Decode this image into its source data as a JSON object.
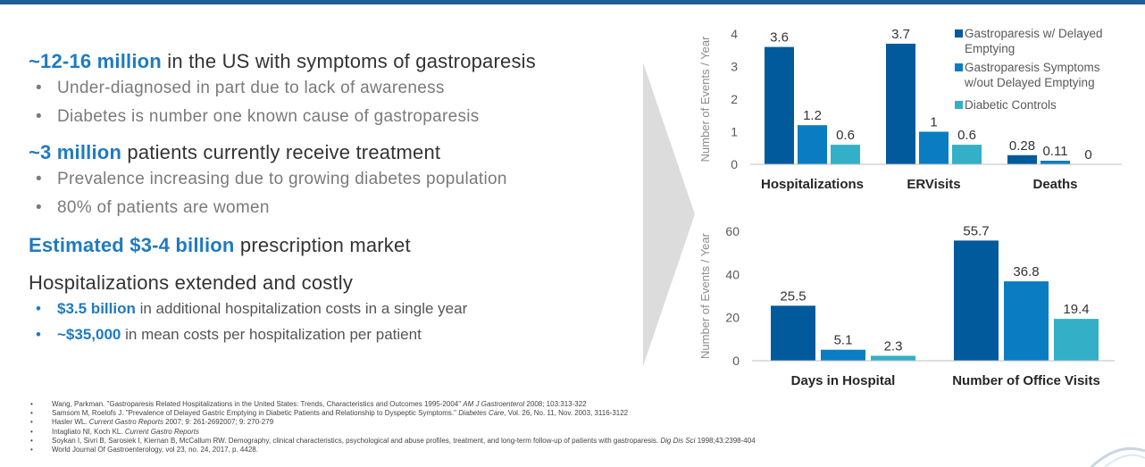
{
  "left": {
    "heading1": {
      "highlight": "~12-16 million",
      "rest": " in the US with symptoms of gastroparesis"
    },
    "bullets1": [
      "Under-diagnosed in part due to lack of awareness",
      "Diabetes is number one known cause of gastroparesis"
    ],
    "heading2": {
      "highlight": "~3 million",
      "rest": " patients currently receive treatment"
    },
    "bullets2": [
      "Prevalence increasing due to growing diabetes population",
      "80% of patients are women"
    ],
    "heading3": {
      "highlight": "Estimated $3-4 billion",
      "rest": " prescription market"
    },
    "heading4": "Hospitalizations extended and costly",
    "bullets3": [
      {
        "highlight": "$3.5 billion",
        "rest": " in additional hospitalization costs in a single year"
      },
      {
        "highlight": "~$35,000",
        "rest": " in mean costs per hospitalization per patient"
      }
    ],
    "bullet_symbol": "•"
  },
  "references": [
    {
      "text": "Wang, Parkman. \"Gastroparesis Related Hospitalizations in the United States: Trends, Characteristics and Outcomes 1995-2004\" ",
      "italic": "AM J Gastroenterol",
      "tail": " 2008; 103:313-322"
    },
    {
      "text": "Samsom M, Roelofs J. \"Prevalence of Delayed Gastric Emptying in Diabetic Patients and Relationship to Dyspeptic Symptoms.\" ",
      "italic": "Diabetes Care",
      "tail": ", Vol. 26, No. 11, Nov. 2003, 3116-3122"
    },
    {
      "text": "Hasler WL. ",
      "italic": "Current Gastro Reports",
      "tail": " 2007; 9: 261-2692007; 9: 270-279"
    },
    {
      "text": "Intagliato NI, Koch KL. ",
      "italic": "Current Gastro Reports",
      "tail": ""
    },
    {
      "text": "Soykan I, Sivri B, Sarosiek I, Kiernan B, McCallum RW. Demography, clinical characteristics, psychological and abuse profiles, treatment, and long-term follow-up of patients with gastroparesis. ",
      "italic": "Dig Dis Sci",
      "tail": " 1998;43:2398-404"
    },
    {
      "text": "World Journal Of Gastroenterology, vol 23, no. 24, 2017, p. 4428.",
      "italic": "",
      "tail": ""
    }
  ],
  "colors": {
    "series1": "#005a9c",
    "series2": "#0a7dc2",
    "series3": "#33b0c8",
    "accent": "#1f7ac2",
    "arrow": "#d9d9d9"
  },
  "chart_data": [
    {
      "type": "bar",
      "ylabel": "Number of Events / Year",
      "ylim": [
        0,
        4
      ],
      "yticks": [
        0,
        1,
        2,
        3,
        4
      ],
      "categories": [
        "Hospitalizations",
        "ERVisits",
        "Deaths"
      ],
      "series": [
        {
          "name": "Gastroparesis w/ Delayed Emptying",
          "values": [
            3.6,
            3.7,
            0.28
          ],
          "labels": [
            "3.6",
            "3.7",
            "0.28"
          ]
        },
        {
          "name": "Gastroparesis Symptoms w/out Delayed Emptying",
          "values": [
            1.2,
            1,
            0.11
          ],
          "labels": [
            "1.2",
            "1",
            "0.11"
          ]
        },
        {
          "name": "Diabetic Controls",
          "values": [
            0.6,
            0.6,
            0
          ],
          "labels": [
            "0.6",
            "0.6",
            "0"
          ]
        }
      ],
      "legend": {
        "position": "top-right",
        "lines": [
          [
            "Gastroparesis w/ Delayed",
            "Emptying"
          ],
          [
            "Gastroparesis Symptoms",
            "w/out Delayed Emptying"
          ],
          [
            "Diabetic Controls"
          ]
        ]
      }
    },
    {
      "type": "bar",
      "ylabel": "Number of Events / Year",
      "ylim": [
        0,
        60
      ],
      "yticks": [
        0,
        20,
        40,
        60
      ],
      "categories": [
        "Days in Hospital",
        "Number of Office Visits"
      ],
      "series": [
        {
          "name": "Gastroparesis w/ Delayed Emptying",
          "values": [
            25.5,
            55.7
          ],
          "labels": [
            "25.5",
            "55.7"
          ]
        },
        {
          "name": "Gastroparesis Symptoms w/out Delayed Emptying",
          "values": [
            5.1,
            36.8
          ],
          "labels": [
            "5.1",
            "36.8"
          ]
        },
        {
          "name": "Diabetic Controls",
          "values": [
            2.3,
            19.4
          ],
          "labels": [
            "2.3",
            "19.4"
          ]
        }
      ]
    }
  ]
}
